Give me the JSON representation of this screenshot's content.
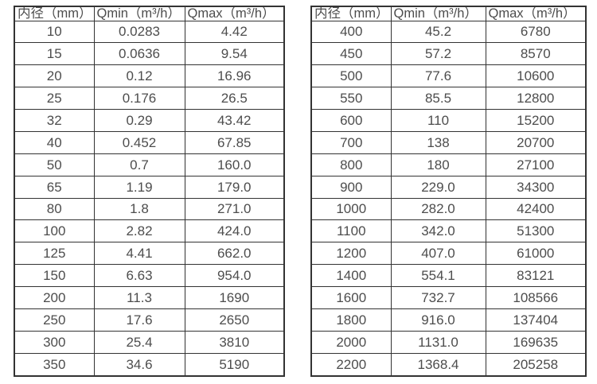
{
  "style": {
    "background": "#ffffff",
    "border_color": "#333333",
    "text_color": "#4d4d4d"
  },
  "chart_data": [
    {
      "type": "table",
      "title": "",
      "columns": [
        "内径（mm）",
        "Qmin（m³/h）",
        "Qmax（m³/h）"
      ],
      "rows": [
        [
          "10",
          "0.0283",
          "4.42"
        ],
        [
          "15",
          "0.0636",
          "9.54"
        ],
        [
          "20",
          "0.12",
          "16.96"
        ],
        [
          "25",
          "0.176",
          "26.5"
        ],
        [
          "32",
          "0.29",
          "43.42"
        ],
        [
          "40",
          "0.452",
          "67.85"
        ],
        [
          "50",
          "0.7",
          "160.0"
        ],
        [
          "65",
          "1.19",
          "179.0"
        ],
        [
          "80",
          "1.8",
          "271.0"
        ],
        [
          "100",
          "2.82",
          "424.0"
        ],
        [
          "125",
          "4.41",
          "662.0"
        ],
        [
          "150",
          "6.63",
          "954.0"
        ],
        [
          "200",
          "11.3",
          "1690"
        ],
        [
          "250",
          "17.6",
          "2650"
        ],
        [
          "300",
          "25.4",
          "3810"
        ],
        [
          "350",
          "34.6",
          "5190"
        ]
      ]
    },
    {
      "type": "table",
      "title": "",
      "columns": [
        "内径（mm）",
        "Qmin（m³/h）",
        "Qmax（m³/h）"
      ],
      "rows": [
        [
          "400",
          "45.2",
          "6780"
        ],
        [
          "450",
          "57.2",
          "8570"
        ],
        [
          "500",
          "77.6",
          "10600"
        ],
        [
          "550",
          "85.5",
          "12800"
        ],
        [
          "600",
          "110",
          "15200"
        ],
        [
          "700",
          "138",
          "20700"
        ],
        [
          "800",
          "180",
          "27100"
        ],
        [
          "900",
          "229.0",
          "34300"
        ],
        [
          "1000",
          "282.0",
          "42400"
        ],
        [
          "1100",
          "342.0",
          "51300"
        ],
        [
          "1200",
          "407.0",
          "61000"
        ],
        [
          "1400",
          "554.1",
          "83121"
        ],
        [
          "1600",
          "732.7",
          "108566"
        ],
        [
          "1800",
          "916.0",
          "137404"
        ],
        [
          "2000",
          "1131.0",
          "169635"
        ],
        [
          "2200",
          "1368.4",
          "205258"
        ]
      ]
    }
  ]
}
